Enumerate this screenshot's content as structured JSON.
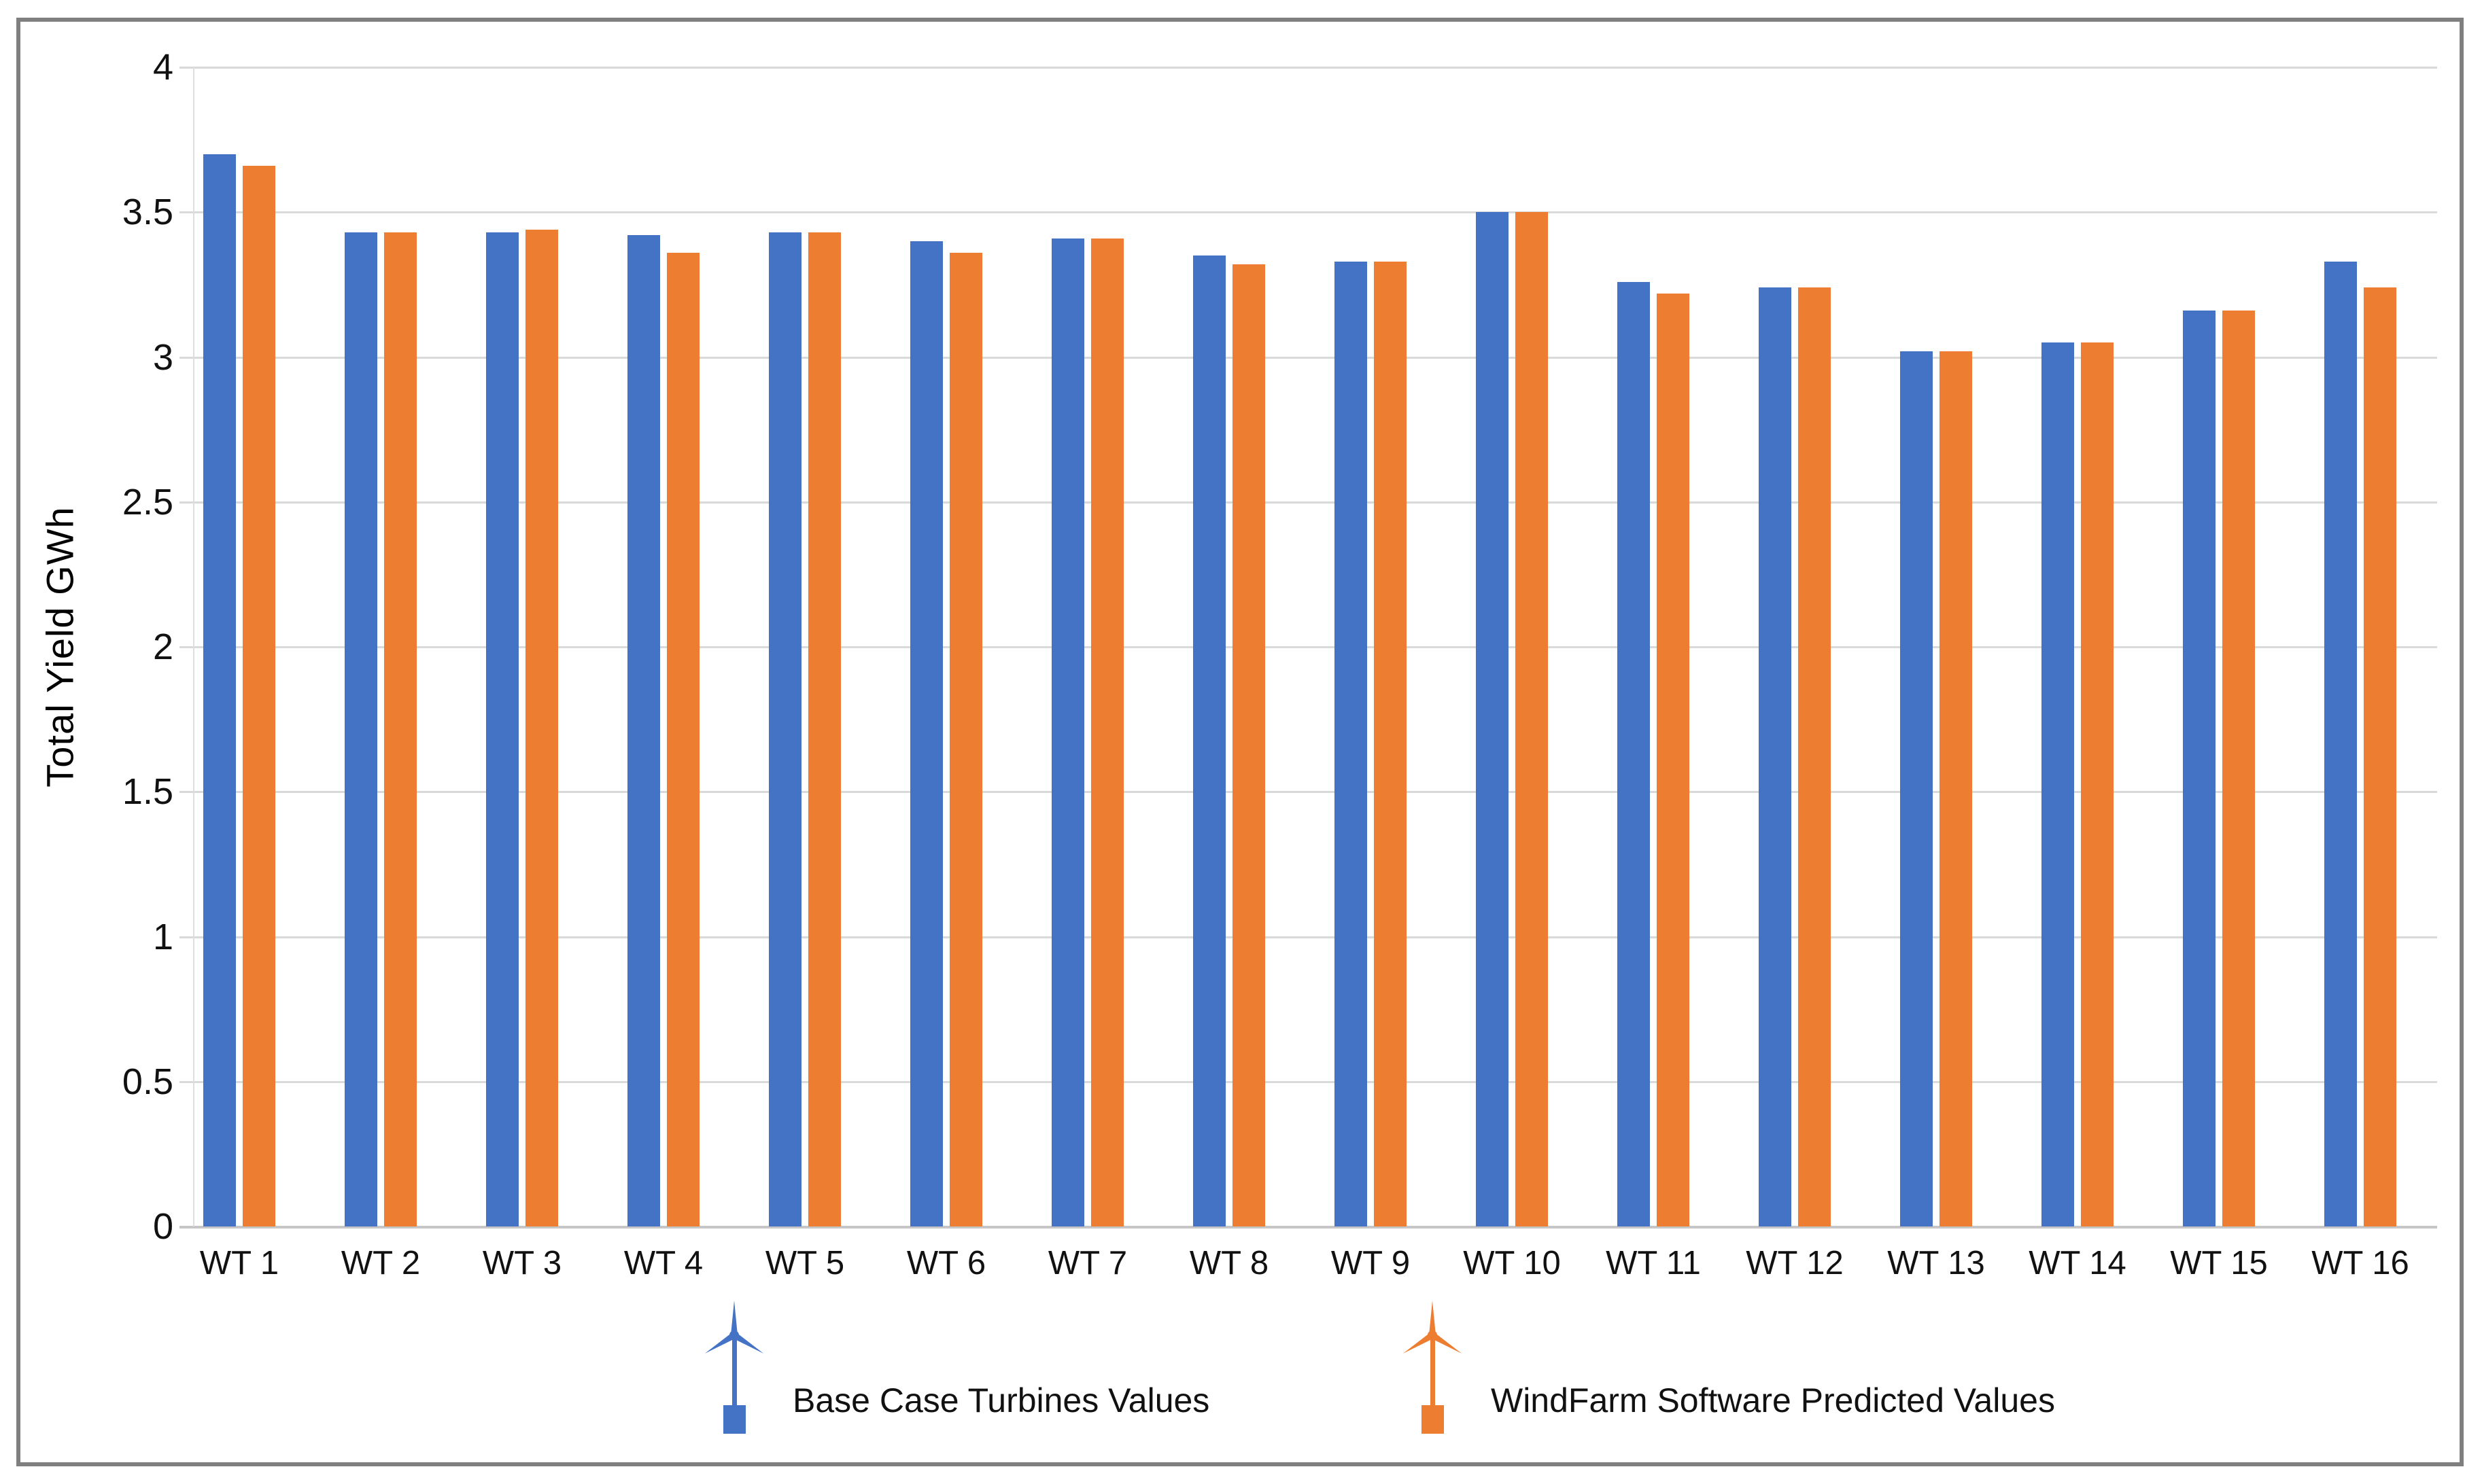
{
  "chart_data": {
    "type": "bar",
    "title": "",
    "xlabel": "",
    "ylabel": "Total Yield  GWh",
    "ylim": [
      0,
      4
    ],
    "yticks": [
      0,
      0.5,
      1,
      1.5,
      2,
      2.5,
      3,
      3.5,
      4
    ],
    "ytick_labels": [
      "0",
      "0.5",
      "1",
      "1.5",
      "2",
      "2.5",
      "3",
      "3.5",
      "4"
    ],
    "grid": true,
    "legend_position": "bottom",
    "categories": [
      "WT 1",
      "WT 2",
      "WT 3",
      "WT 4",
      "WT 5",
      "WT 6",
      "WT 7",
      "WT 8",
      "WT 9",
      "WT 10",
      "WT 11",
      "WT 12",
      "WT 13",
      "WT 14",
      "WT 15",
      "WT 16"
    ],
    "series": [
      {
        "name": "Base Case Turbines Values",
        "color": "#4472C4",
        "values": [
          3.7,
          3.43,
          3.43,
          3.42,
          3.43,
          3.4,
          3.41,
          3.35,
          3.33,
          3.5,
          3.26,
          3.24,
          3.02,
          3.05,
          3.16,
          3.33
        ]
      },
      {
        "name": "WindFarm Software Predicted Values",
        "color": "#ED7D31",
        "values": [
          3.66,
          3.43,
          3.44,
          3.36,
          3.43,
          3.36,
          3.41,
          3.32,
          3.33,
          3.5,
          3.22,
          3.24,
          3.02,
          3.05,
          3.16,
          3.24
        ]
      }
    ]
  },
  "legend": {
    "items": [
      {
        "label": "Base Case Turbines Values",
        "color": "#4472C4",
        "icon": "wind-turbine-icon"
      },
      {
        "label": "WindFarm Software Predicted Values",
        "color": "#ED7D31",
        "icon": "wind-turbine-icon"
      }
    ]
  },
  "colors": {
    "gridline": "#d9d9d9",
    "baseline": "#c6c6c6",
    "frame_border": "#808080",
    "background": "#ffffff"
  }
}
